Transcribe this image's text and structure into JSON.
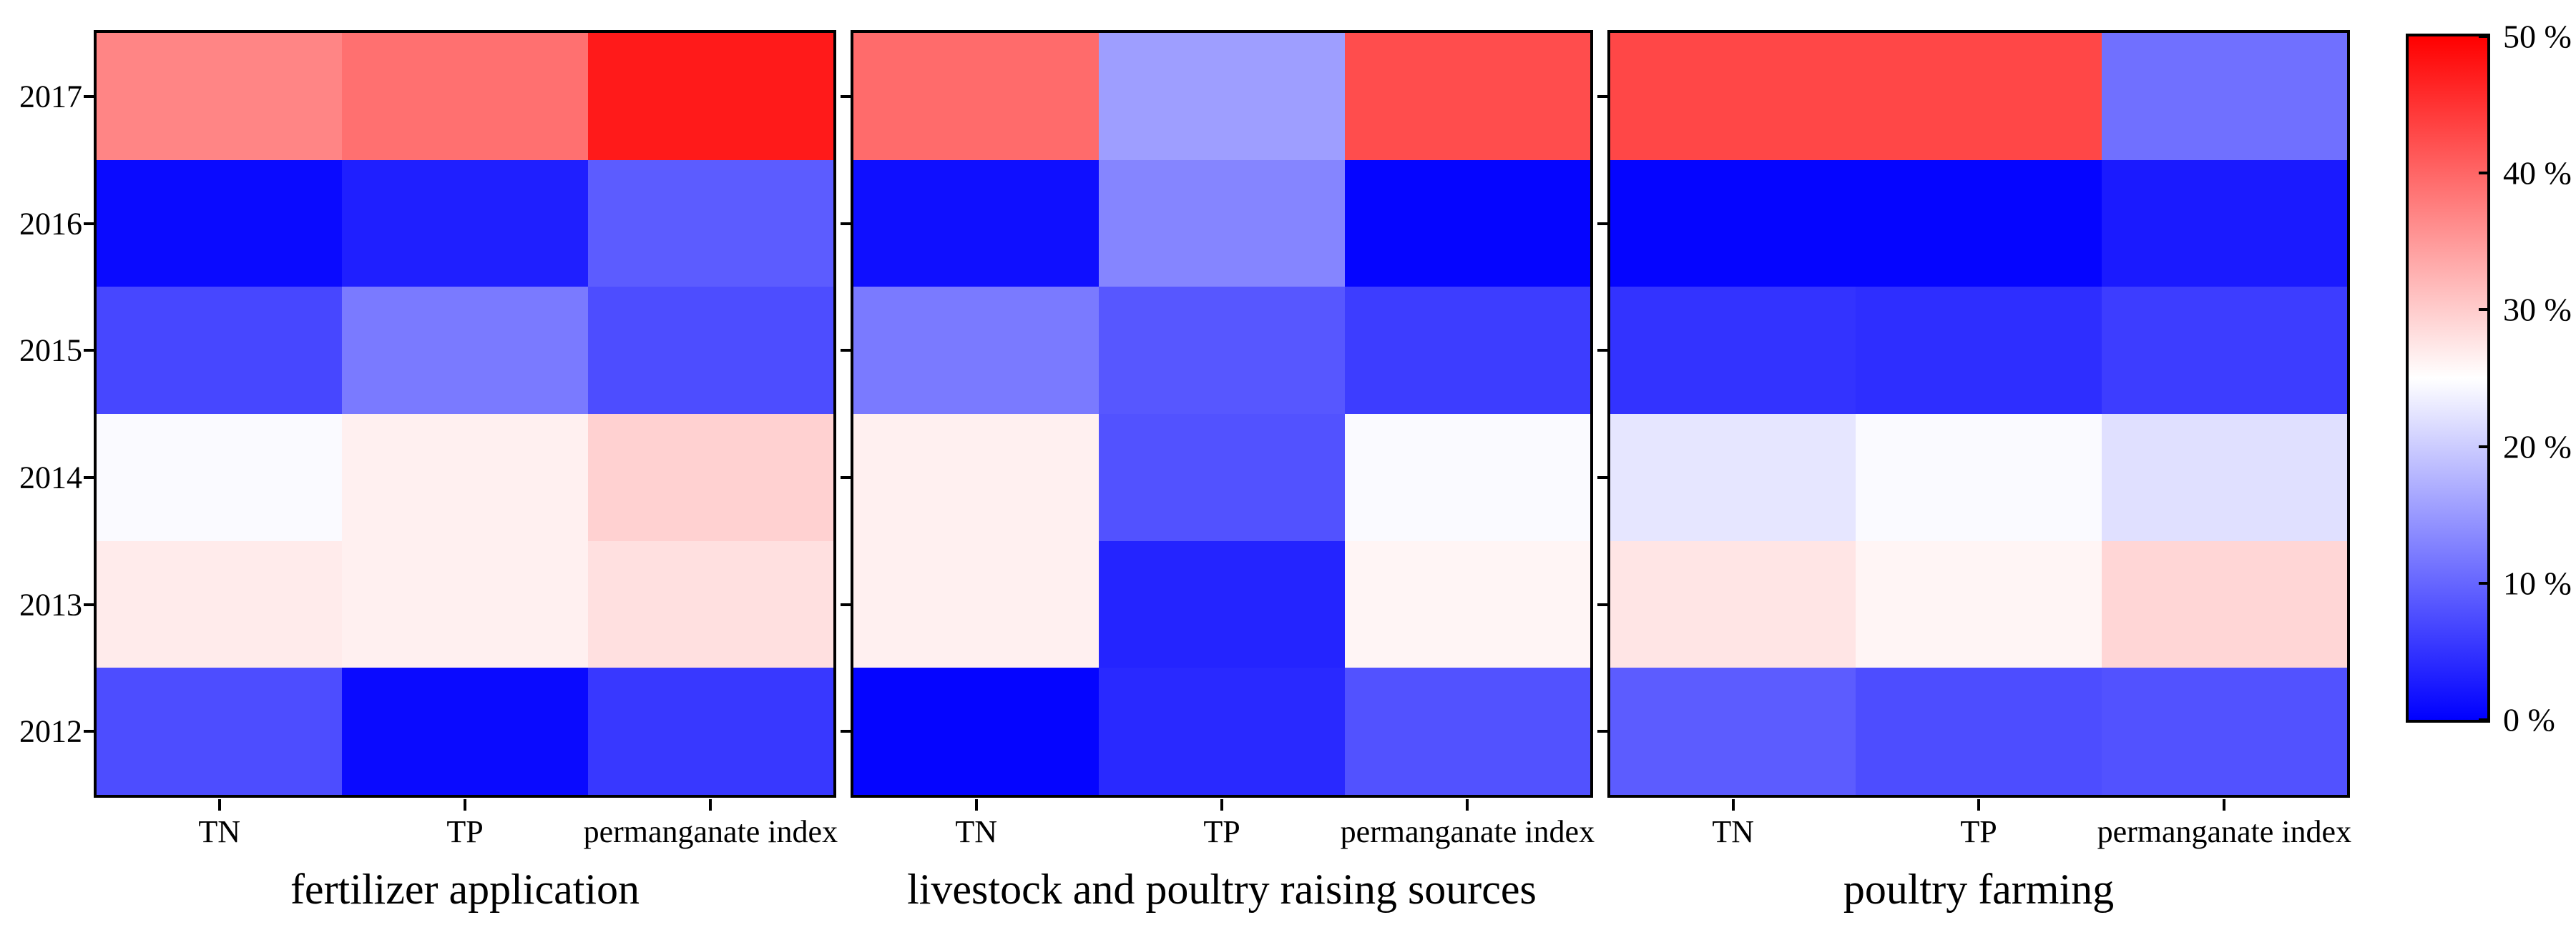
{
  "chart_data": {
    "type": "heatmap",
    "unit": "%",
    "value_range": [
      0,
      50
    ],
    "colormap": {
      "name": "blue-white-red",
      "min_color": "#0000ff",
      "mid_color": "#ffffff",
      "max_color": "#ff0000"
    },
    "rows": [
      "2017",
      "2016",
      "2015",
      "2014",
      "2013",
      "2012"
    ],
    "columns": [
      "TN",
      "TP",
      "permanganate index"
    ],
    "panels": [
      {
        "title": "fertilizer application",
        "values": [
          [
            37.0,
            39.0,
            47.5
          ],
          [
            1.0,
            3.0,
            9.0
          ],
          [
            7.0,
            12.0,
            7.5
          ],
          [
            24.5,
            26.5,
            29.5
          ],
          [
            27.0,
            26.5,
            28.0
          ],
          [
            7.5,
            1.0,
            5.5
          ]
        ]
      },
      {
        "title": "livestock and poultry raising sources",
        "values": [
          [
            39.5,
            15.5,
            42.5
          ],
          [
            1.5,
            13.0,
            0.5
          ],
          [
            12.0,
            8.5,
            6.0
          ],
          [
            26.5,
            8.0,
            24.5
          ],
          [
            26.5,
            3.5,
            26.0
          ],
          [
            0.5,
            4.0,
            8.0
          ]
        ]
      },
      {
        "title": "poultry farming",
        "values": [
          [
            43.0,
            43.0,
            11.0
          ],
          [
            0.5,
            0.5,
            2.5
          ],
          [
            5.0,
            4.5,
            6.0
          ],
          [
            22.5,
            24.5,
            22.0
          ],
          [
            27.5,
            26.0,
            29.0
          ],
          [
            9.0,
            7.5,
            8.0
          ]
        ]
      }
    ],
    "colorbar": {
      "labels": [
        "50 %",
        "40 %",
        "30 %",
        "20 %",
        "10 %",
        "0 %"
      ],
      "top_value": 50,
      "bottom_value": 0
    },
    "layout": {
      "grid": false,
      "y_axis_labels_on_first_panel_only": true,
      "legend_position": "right-colorbar"
    }
  }
}
